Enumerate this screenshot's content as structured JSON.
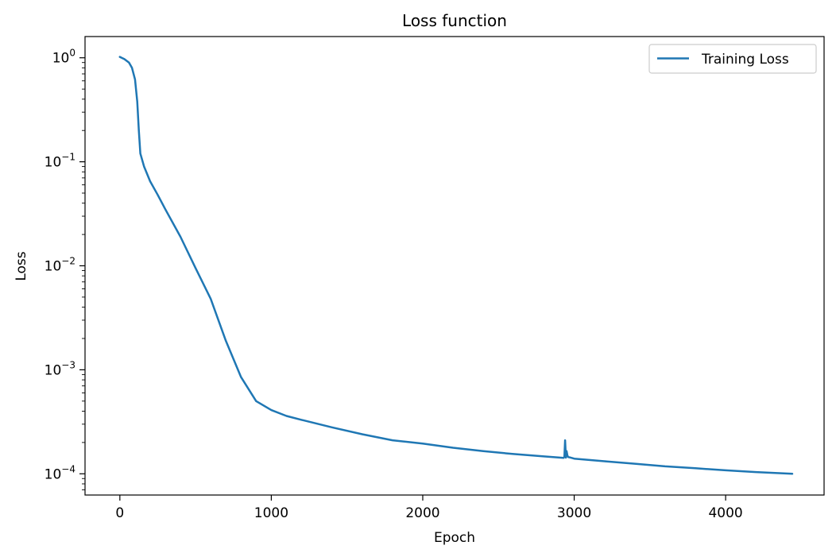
{
  "chart_data": {
    "type": "line",
    "title": "Loss function",
    "xlabel": "Epoch",
    "ylabel": "Loss",
    "xlim": [
      -230,
      4650
    ],
    "ylim": [
      6.25e-05,
      1.6
    ],
    "yscale": "log",
    "grid": false,
    "legend_position": "top-right",
    "x_ticks": [
      {
        "value": 0,
        "label": "0"
      },
      {
        "value": 1000,
        "label": "1000"
      },
      {
        "value": 2000,
        "label": "2000"
      },
      {
        "value": 3000,
        "label": "3000"
      },
      {
        "value": 4000,
        "label": "4000"
      }
    ],
    "y_ticks": [
      {
        "value": 1,
        "base": "10",
        "exponent": "0"
      },
      {
        "value": 0.1,
        "base": "10",
        "exponent": "−1"
      },
      {
        "value": 0.01,
        "base": "10",
        "exponent": "−2"
      },
      {
        "value": 0.001,
        "base": "10",
        "exponent": "−3"
      },
      {
        "value": 0.0001,
        "base": "10",
        "exponent": "−4"
      }
    ],
    "series": [
      {
        "name": "Training Loss",
        "color": "#1f77b4",
        "points": [
          [
            0,
            1.02
          ],
          [
            30,
            0.97
          ],
          [
            60,
            0.9
          ],
          [
            80,
            0.8
          ],
          [
            100,
            0.62
          ],
          [
            115,
            0.38
          ],
          [
            125,
            0.2
          ],
          [
            135,
            0.12
          ],
          [
            160,
            0.09
          ],
          [
            200,
            0.065
          ],
          [
            250,
            0.048
          ],
          [
            300,
            0.035
          ],
          [
            400,
            0.019
          ],
          [
            500,
            0.0095
          ],
          [
            600,
            0.0048
          ],
          [
            700,
            0.0019
          ],
          [
            800,
            0.00085
          ],
          [
            900,
            0.0005
          ],
          [
            1000,
            0.00041
          ],
          [
            1100,
            0.00036
          ],
          [
            1200,
            0.00033
          ],
          [
            1400,
            0.00028
          ],
          [
            1600,
            0.00024
          ],
          [
            1800,
            0.00021
          ],
          [
            2000,
            0.000195
          ],
          [
            2200,
            0.000178
          ],
          [
            2400,
            0.000165
          ],
          [
            2600,
            0.000155
          ],
          [
            2800,
            0.000147
          ],
          [
            2930,
            0.000142
          ],
          [
            2935,
            0.000145
          ],
          [
            2940,
            0.00021
          ],
          [
            2945,
            0.000143
          ],
          [
            2950,
            0.000165
          ],
          [
            2955,
            0.00015
          ],
          [
            2960,
            0.000145
          ],
          [
            2970,
            0.000144
          ],
          [
            3000,
            0.00014
          ],
          [
            3200,
            0.000132
          ],
          [
            3400,
            0.000125
          ],
          [
            3600,
            0.000118
          ],
          [
            3800,
            0.000113
          ],
          [
            4000,
            0.000108
          ],
          [
            4200,
            0.000104
          ],
          [
            4440,
            0.0001
          ]
        ]
      }
    ]
  }
}
